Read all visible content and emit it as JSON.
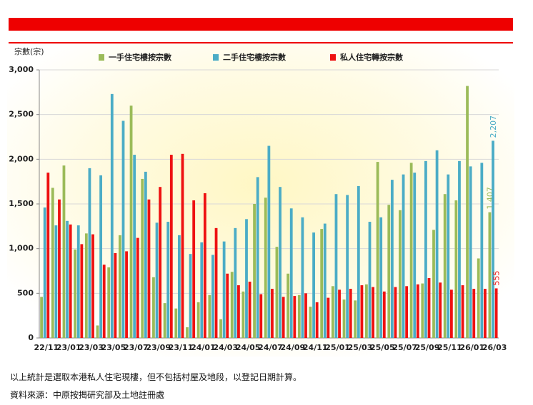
{
  "chart_data": {
    "type": "bar",
    "y_label": "宗數(宗)",
    "categories": [
      "22/11",
      null,
      "23/01",
      null,
      "23/03",
      null,
      "23/05",
      null,
      "23/07",
      null,
      "23/09",
      null,
      "23/11",
      null,
      "24/01",
      null,
      "24/03",
      null,
      "24/05",
      null,
      "24/07",
      null,
      "24/09",
      null,
      "24/11",
      null,
      "25/01",
      null,
      "25/03",
      null,
      "25/05",
      null,
      "25/07",
      null,
      "25/09",
      null,
      "25/11",
      null,
      "26/01",
      null,
      "26/03"
    ],
    "series": [
      {
        "name": "一手住宅樓按宗數",
        "color": "#9bbb59",
        "values": [
          460,
          1680,
          1930,
          990,
          1170,
          140,
          790,
          1150,
          2600,
          1780,
          680,
          390,
          330,
          120,
          400,
          480,
          210,
          740,
          520,
          1500,
          1570,
          1020,
          720,
          480,
          350,
          1220,
          580,
          430,
          420,
          600,
          1970,
          1490,
          1430,
          1960,
          610,
          1210,
          1610,
          1540,
          2820,
          890,
          1407
        ],
        "value_labels": [
          null,
          null,
          null,
          null,
          null,
          null,
          null,
          null,
          null,
          null,
          null,
          null,
          null,
          null,
          null,
          null,
          null,
          null,
          null,
          null,
          null,
          null,
          null,
          null,
          null,
          null,
          null,
          null,
          null,
          null,
          null,
          null,
          null,
          null,
          null,
          null,
          null,
          null,
          null,
          null,
          "1,407"
        ]
      },
      {
        "name": "二手住宅樓按宗數",
        "color": "#4bacc6",
        "values": [
          1460,
          1260,
          1310,
          1260,
          1900,
          1820,
          2730,
          2430,
          2050,
          1860,
          1290,
          1300,
          1150,
          940,
          1070,
          930,
          1080,
          1230,
          1330,
          1800,
          2150,
          1690,
          1450,
          1350,
          1180,
          1280,
          1610,
          1600,
          1700,
          1300,
          1350,
          1770,
          1830,
          1850,
          1980,
          2100,
          1830,
          1980,
          1920,
          1960,
          2207
        ],
        "value_labels": [
          null,
          null,
          null,
          null,
          null,
          null,
          null,
          null,
          null,
          null,
          null,
          null,
          null,
          null,
          null,
          null,
          null,
          null,
          null,
          null,
          null,
          null,
          null,
          null,
          null,
          null,
          null,
          null,
          null,
          null,
          null,
          null,
          null,
          null,
          null,
          null,
          null,
          null,
          null,
          null,
          "2,207"
        ]
      },
      {
        "name": "私人住宅轉按宗數",
        "color": "#ee1111",
        "values": [
          1850,
          1550,
          1270,
          1050,
          1160,
          820,
          950,
          970,
          1120,
          1550,
          1690,
          2050,
          2060,
          1540,
          1620,
          1230,
          720,
          590,
          630,
          490,
          550,
          460,
          470,
          500,
          400,
          450,
          540,
          550,
          590,
          570,
          520,
          570,
          580,
          600,
          670,
          620,
          540,
          590,
          550,
          550,
          555
        ],
        "value_labels": [
          null,
          null,
          null,
          null,
          null,
          null,
          null,
          null,
          null,
          null,
          null,
          null,
          null,
          null,
          null,
          null,
          null,
          null,
          null,
          null,
          null,
          null,
          null,
          null,
          null,
          null,
          null,
          null,
          null,
          null,
          null,
          null,
          null,
          null,
          null,
          null,
          null,
          null,
          null,
          null,
          "555"
        ]
      }
    ],
    "ylim": [
      0,
      3000
    ],
    "yticks": [
      0,
      500,
      {
        "value": 1000,
        "label": "1,000"
      },
      {
        "value": 1500,
        "label": "1,500"
      },
      {
        "value": 2000,
        "label": "2,000"
      },
      {
        "value": 2500,
        "label": "2,500"
      },
      {
        "value": 3000,
        "label": "3,000"
      }
    ],
    "grid": true,
    "legend": "top"
  },
  "notes": [
    "以上統計是選取本港私人住宅現樓，但不包括村屋及地段，以登記日期計算。",
    "資料來源：中原按揭研究部及土地註冊處"
  ]
}
